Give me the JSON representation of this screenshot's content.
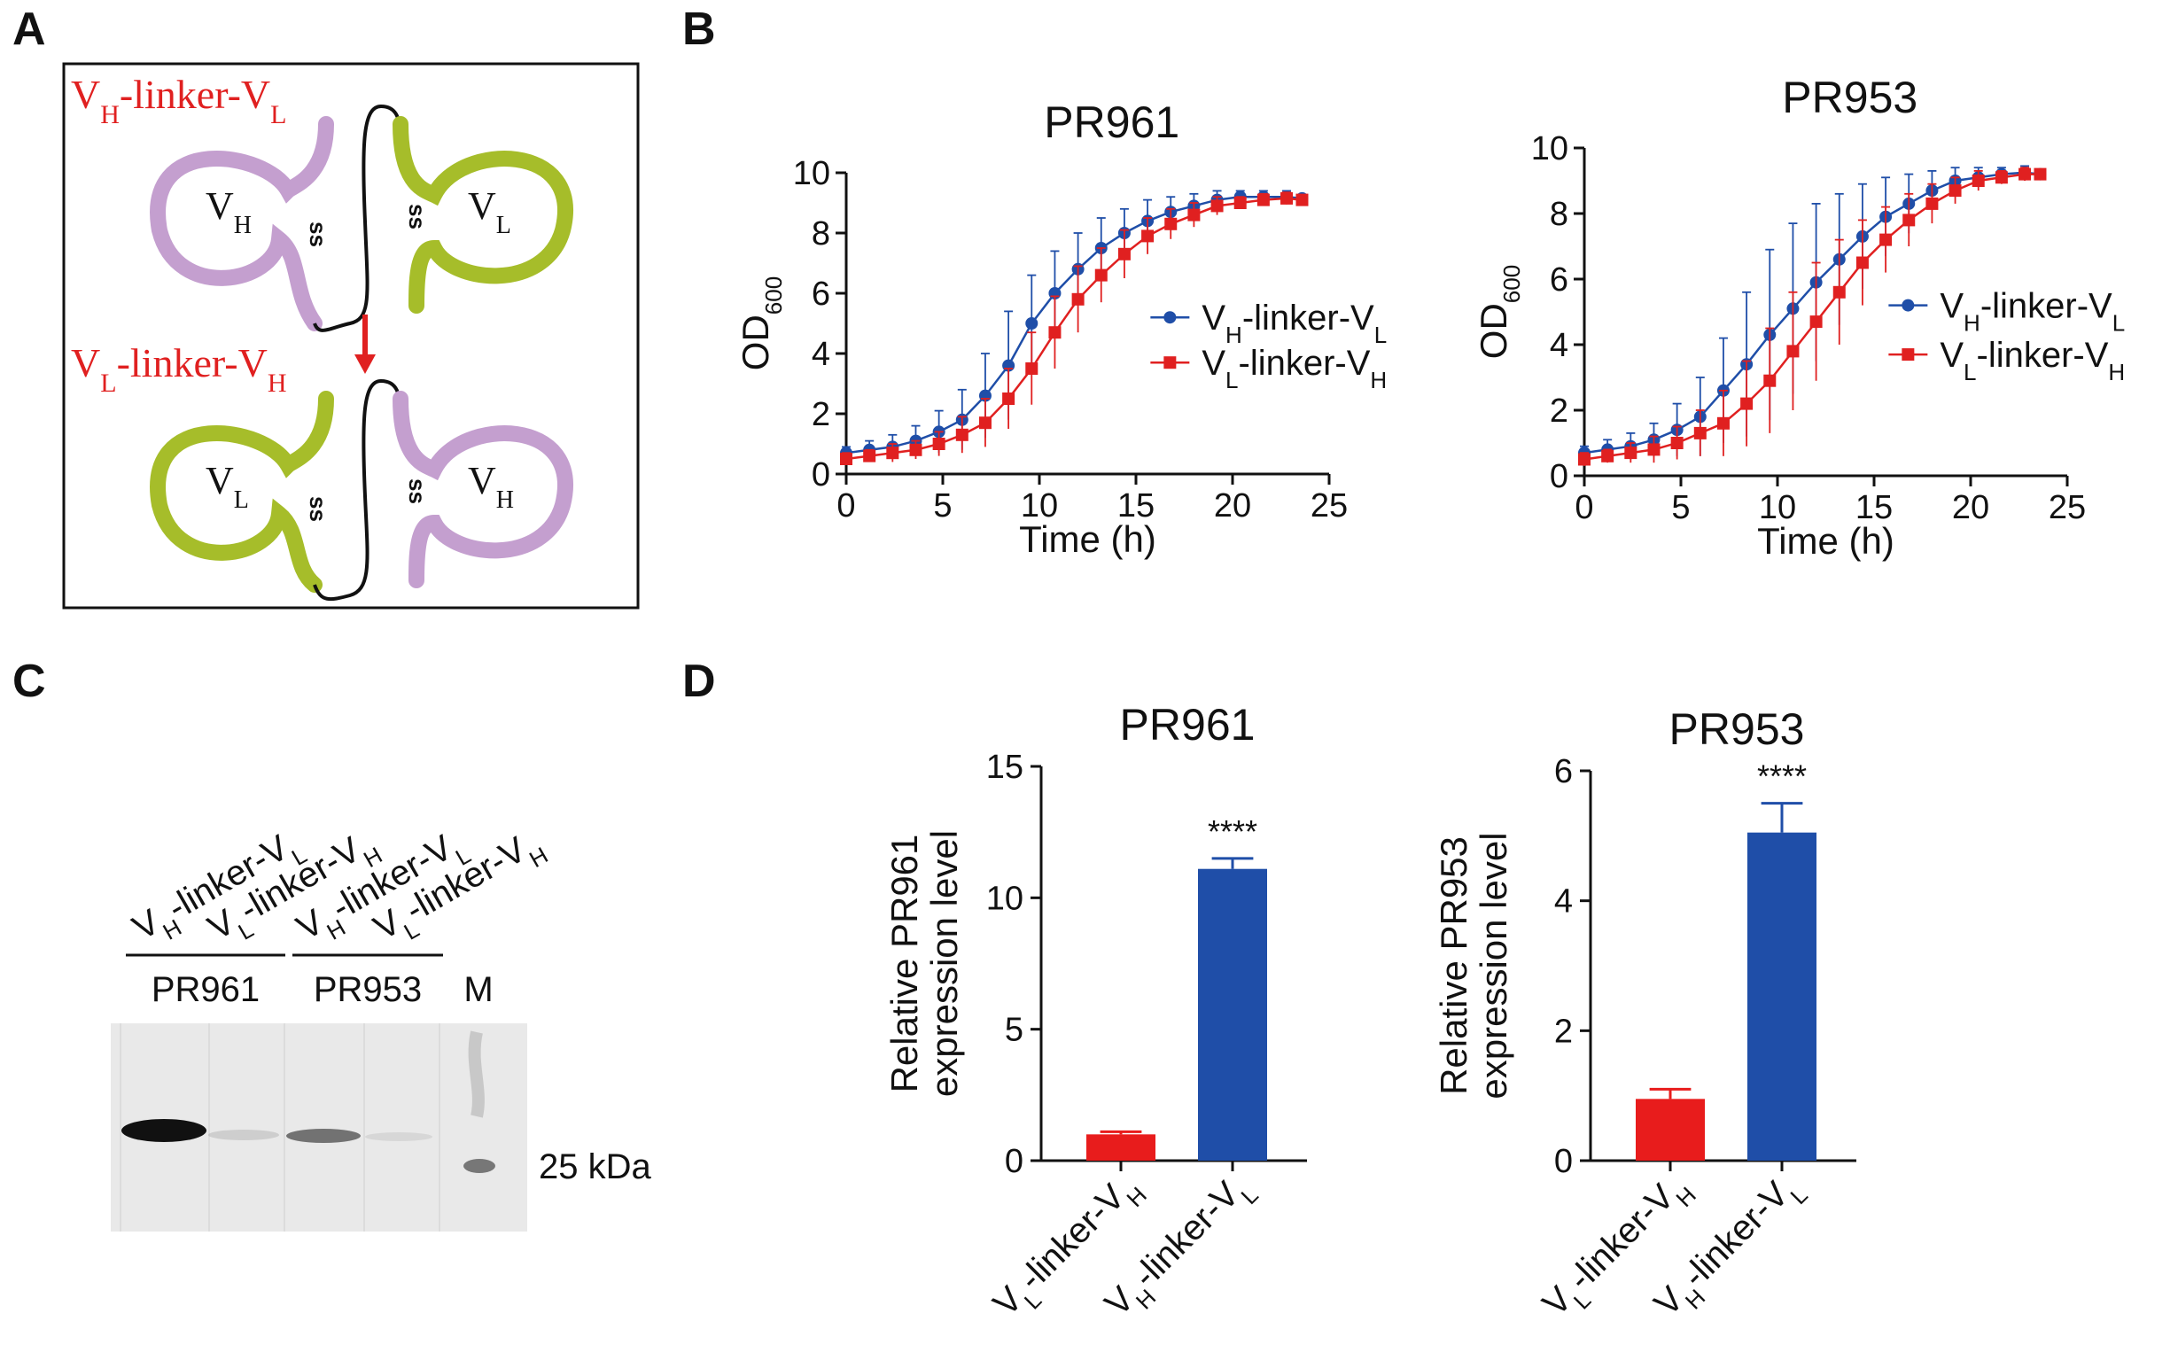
{
  "panels": {
    "a": {
      "letter": "A",
      "top_construct": {
        "v1": "V",
        "s1": "H",
        "link": "-linker-",
        "v2": "V",
        "s2": "L"
      },
      "bottom_construct": {
        "v1": "V",
        "s1": "L",
        "link": "-linker-",
        "v2": "V",
        "s2": "H"
      },
      "top_left_domain": {
        "v": "V",
        "s": "H"
      },
      "top_right_domain": {
        "v": "V",
        "s": "L"
      },
      "bottom_left_domain": {
        "v": "V",
        "s": "L"
      },
      "bottom_right_domain": {
        "v": "V",
        "s": "H"
      },
      "disulfide": "ss",
      "colors": {
        "vh": "#c49fcf",
        "vl": "#a6bd2a",
        "arrow": "#e02020"
      }
    },
    "b": {
      "letter": "B"
    },
    "c": {
      "letter": "C",
      "lanes": [
        {
          "v": "V",
          "s1": "H",
          "link": "-linker-",
          "v2": "V",
          "s2": "L"
        },
        {
          "v": "V",
          "s1": "L",
          "link": "-linker-",
          "v2": "V",
          "s2": "H"
        },
        {
          "v": "V",
          "s1": "H",
          "link": "-linker-",
          "v2": "V",
          "s2": "L"
        },
        {
          "v": "V",
          "s1": "L",
          "link": "-linker-",
          "v2": "V",
          "s2": "H"
        }
      ],
      "group1": "PR961",
      "group2": "PR953",
      "marker": "M",
      "size_label": "25 kDa",
      "band_intensity": [
        1.0,
        0.12,
        0.55,
        0.05
      ]
    },
    "d": {
      "letter": "D"
    }
  },
  "legend_labels": {
    "vh_vl": {
      "v": "V",
      "s1": "H",
      "link": "-linker-",
      "v2": "V",
      "s2": "L"
    },
    "vl_vh": {
      "v": "V",
      "s1": "L",
      "link": "-linker-",
      "v2": "V",
      "s2": "H"
    }
  },
  "od_label": {
    "main": "OD",
    "sub": "600"
  },
  "time_label": "Time (h)",
  "chart_data": [
    {
      "type": "line",
      "title": "PR961",
      "xlabel": "Time (h)",
      "ylabel": "OD600",
      "xlim": [
        0,
        25
      ],
      "ylim": [
        0,
        10
      ],
      "xticks": [
        "0",
        "5",
        "10",
        "15",
        "20",
        "25"
      ],
      "yticks": [
        "0",
        "2",
        "4",
        "6",
        "8",
        "10"
      ],
      "x": [
        0,
        1.2,
        2.4,
        3.6,
        4.8,
        6,
        7.2,
        8.4,
        9.6,
        10.8,
        12,
        13.2,
        14.4,
        15.6,
        16.8,
        18,
        19.2,
        20.4,
        21.6,
        22.8,
        23.6
      ],
      "series": [
        {
          "name": "VH-linker-VL",
          "color": "#1f4ea8",
          "marker": "circle",
          "values": [
            0.7,
            0.8,
            0.9,
            1.1,
            1.4,
            1.8,
            2.6,
            3.6,
            5.0,
            6.0,
            6.8,
            7.5,
            8.0,
            8.4,
            8.7,
            8.9,
            9.1,
            9.2,
            9.2,
            9.2,
            9.15
          ],
          "err": [
            0.2,
            0.3,
            0.4,
            0.5,
            0.7,
            1.0,
            1.4,
            1.8,
            1.6,
            1.4,
            1.2,
            1.0,
            0.8,
            0.7,
            0.5,
            0.4,
            0.3,
            0.2,
            0.2,
            0.2,
            0.1
          ]
        },
        {
          "name": "VL-linker-VH",
          "color": "#e02020",
          "marker": "square",
          "values": [
            0.5,
            0.6,
            0.7,
            0.8,
            1.0,
            1.3,
            1.7,
            2.5,
            3.5,
            4.7,
            5.8,
            6.6,
            7.3,
            7.9,
            8.3,
            8.6,
            8.9,
            9.0,
            9.1,
            9.15,
            9.1
          ],
          "err": [
            0.2,
            0.2,
            0.3,
            0.3,
            0.4,
            0.6,
            0.8,
            1.0,
            1.2,
            1.2,
            1.1,
            0.9,
            0.8,
            0.6,
            0.5,
            0.4,
            0.3,
            0.2,
            0.2,
            0.2,
            0.1
          ]
        }
      ],
      "legend": "right"
    },
    {
      "type": "line",
      "title": "PR953",
      "xlabel": "Time (h)",
      "ylabel": "OD600",
      "xlim": [
        0,
        25
      ],
      "ylim": [
        0,
        10
      ],
      "xticks": [
        "0",
        "5",
        "10",
        "15",
        "20",
        "25"
      ],
      "yticks": [
        "0",
        "2",
        "4",
        "6",
        "8",
        "10"
      ],
      "x": [
        0,
        1.2,
        2.4,
        3.6,
        4.8,
        6,
        7.2,
        8.4,
        9.6,
        10.8,
        12,
        13.2,
        14.4,
        15.6,
        16.8,
        18,
        19.2,
        20.4,
        21.6,
        22.8,
        23.6
      ],
      "series": [
        {
          "name": "VH-linker-VL",
          "color": "#1f4ea8",
          "marker": "circle",
          "values": [
            0.7,
            0.8,
            0.9,
            1.1,
            1.4,
            1.8,
            2.6,
            3.4,
            4.3,
            5.1,
            5.9,
            6.6,
            7.3,
            7.9,
            8.3,
            8.7,
            9.0,
            9.1,
            9.2,
            9.25,
            9.2
          ],
          "err": [
            0.2,
            0.3,
            0.4,
            0.5,
            0.8,
            1.2,
            1.6,
            2.2,
            2.6,
            2.6,
            2.4,
            2.0,
            1.6,
            1.2,
            0.9,
            0.6,
            0.4,
            0.3,
            0.2,
            0.2,
            0.1
          ]
        },
        {
          "name": "VL-linker-VH",
          "color": "#e02020",
          "marker": "square",
          "values": [
            0.5,
            0.6,
            0.7,
            0.8,
            1.0,
            1.3,
            1.6,
            2.2,
            2.9,
            3.8,
            4.7,
            5.6,
            6.5,
            7.2,
            7.8,
            8.3,
            8.7,
            9.0,
            9.1,
            9.2,
            9.2
          ],
          "err": [
            0.2,
            0.2,
            0.3,
            0.4,
            0.5,
            0.7,
            1.0,
            1.3,
            1.6,
            1.8,
            1.8,
            1.6,
            1.3,
            1.0,
            0.8,
            0.6,
            0.4,
            0.3,
            0.2,
            0.2,
            0.1
          ]
        }
      ],
      "legend": "right"
    },
    {
      "type": "bar",
      "title": "PR961",
      "ylabel_lines": [
        "Relative PR961",
        "expression level"
      ],
      "ylim": [
        0,
        15
      ],
      "yticks": [
        "0",
        "5",
        "10",
        "15"
      ],
      "categories": [
        "VL-linker-VH",
        "VH-linker-VL"
      ],
      "values": [
        1.0,
        11.1
      ],
      "err": [
        0.1,
        0.4
      ],
      "colors": [
        "#e81c1c",
        "#1f4ea8"
      ],
      "significance": "****"
    },
    {
      "type": "bar",
      "title": "PR953",
      "ylabel_lines": [
        "Relative PR953",
        "expression level"
      ],
      "ylim": [
        0,
        6
      ],
      "yticks": [
        "0",
        "2",
        "4",
        "6"
      ],
      "categories": [
        "VL-linker-VH",
        "VH-linker-VL"
      ],
      "values": [
        0.95,
        5.05
      ],
      "err": [
        0.15,
        0.45
      ],
      "colors": [
        "#e81c1c",
        "#1f4ea8"
      ],
      "significance": "****"
    }
  ]
}
